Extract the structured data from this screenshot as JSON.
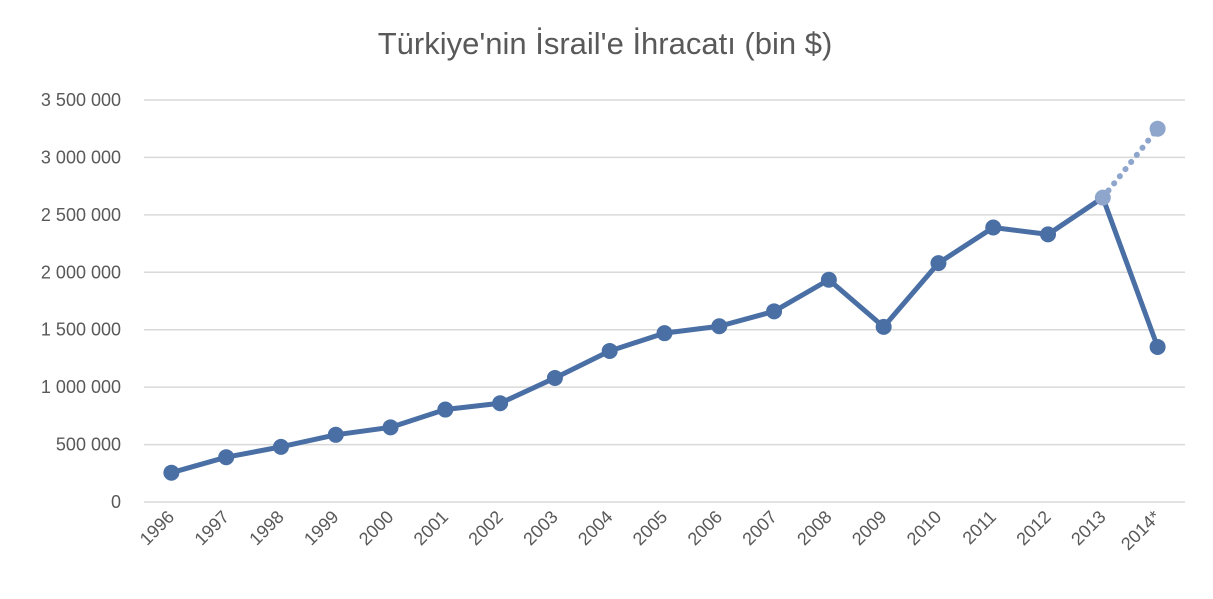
{
  "chart_data": {
    "type": "line",
    "title": "Türkiye'nin İsrail'e İhracatı (bin $)",
    "xlabel": "",
    "ylabel": "",
    "categories": [
      "1996",
      "1997",
      "1998",
      "1999",
      "2000",
      "2001",
      "2002",
      "2003",
      "2004",
      "2005",
      "2006",
      "2007",
      "2008",
      "2009",
      "2010",
      "2011",
      "2012",
      "2013",
      "2014*"
    ],
    "series": [
      {
        "values": [
          255000,
          390000,
          480000,
          585000,
          650000,
          805000,
          860000,
          1080000,
          1315000,
          1470000,
          1530000,
          1660000,
          1935000,
          1525000,
          2080000,
          2390000,
          2330000,
          2650000,
          1350000
        ],
        "color": "#4a6fa5",
        "style": "solid"
      },
      {
        "x": [
          "2013",
          "2014*"
        ],
        "values": [
          2650000,
          3250000
        ],
        "color": "#8fa6cc",
        "style": "dotted"
      }
    ],
    "ylim": [
      0,
      3500000
    ],
    "yticks": [
      0,
      500000,
      1000000,
      1500000,
      2000000,
      2500000,
      3000000,
      3500000
    ],
    "ytick_labels": [
      "0",
      "500 000",
      "1 000 000",
      "1 500 000",
      "2 000 000",
      "2 500 000",
      "3 000 000",
      "3 500 000"
    ],
    "grid": true,
    "legend": "none"
  }
}
